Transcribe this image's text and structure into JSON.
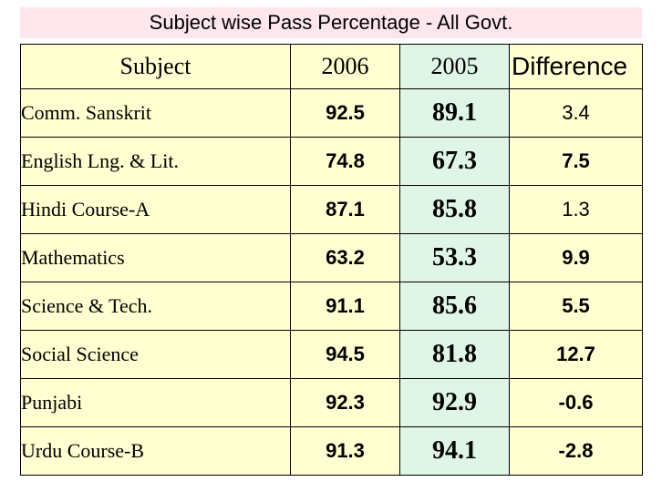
{
  "title": "Subject wise Pass Percentage - All Govt.",
  "headers": [
    "Subject",
    "2006",
    "2005",
    "Difference"
  ],
  "rows": [
    {
      "subject": "Comm. Sanskrit",
      "y2006": "92.5",
      "y2005": "89.1",
      "diff": "3.4"
    },
    {
      "subject": "English Lng. & Lit.",
      "y2006": "74.8",
      "y2005": "67.3",
      "diff": "7.5"
    },
    {
      "subject": "Hindi Course-A",
      "y2006": "87.1",
      "y2005": "85.8",
      "diff": "1.3"
    },
    {
      "subject": "Mathematics",
      "y2006": "63.2",
      "y2005": "53.3",
      "diff": "9.9"
    },
    {
      "subject": "Science & Tech.",
      "y2006": "91.1",
      "y2005": "85.6",
      "diff": "5.5"
    },
    {
      "subject": "Social Science",
      "y2006": "94.5",
      "y2005": "81.8",
      "diff": "12.7"
    },
    {
      "subject": "Punjabi",
      "y2006": "92.3",
      "y2005": "92.9",
      "diff": "-0.6"
    },
    {
      "subject": "Urdu Course-B",
      "y2006": "91.3",
      "y2005": "94.1",
      "diff": "-2.8"
    }
  ],
  "colors": {
    "title_bg": "#fde6ec",
    "cell_bg": "#ffffd1",
    "col_2005_bg": "#dff5e6"
  }
}
